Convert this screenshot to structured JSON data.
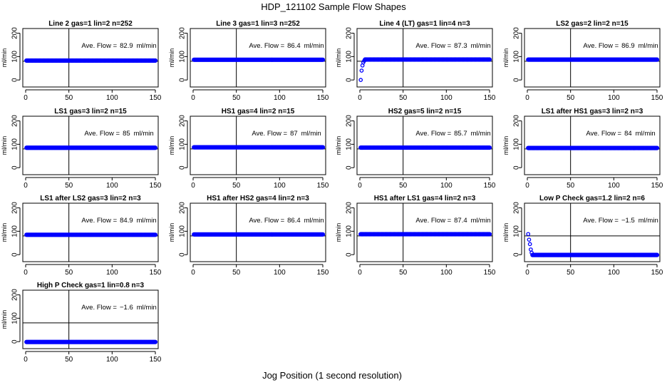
{
  "figure": {
    "title": "HDP_121102  Sample Flow Shapes",
    "xlabel": "Jog Position (1 second resolution)"
  },
  "chart_data": {
    "type": "scatter",
    "xlim": [
      0,
      150
    ],
    "ylim": [
      -30,
      220
    ],
    "xticks": [
      0,
      50,
      100,
      150
    ],
    "yticks": [
      0,
      100,
      200
    ],
    "ytick_labels": [
      "0",
      "100",
      "200"
    ],
    "ylabel": "ml/min",
    "vline_x": 50,
    "hline_y": 80,
    "point_color": "#0000ff",
    "ann_prefix": "Ave. Flow =",
    "ann_unit": "ml/min",
    "panels": [
      {
        "title": "Line 2 gas=1 lin=2 n=252",
        "ave_flow": "82.9",
        "level": 82.9,
        "ramp": []
      },
      {
        "title": "Line 3 gas=1 lin=3 n=252",
        "ave_flow": "86.4",
        "level": 86.4,
        "ramp": []
      },
      {
        "title": "Line 4 (LT) gas=1 lin=4 n=3",
        "ave_flow": "87.3",
        "level": 87.3,
        "ramp": [
          [
            1,
            0
          ],
          [
            2,
            40
          ],
          [
            3,
            62
          ],
          [
            4,
            75
          ],
          [
            5,
            82
          ]
        ]
      },
      {
        "title": "LS2 gas=2 lin=2 n=15",
        "ave_flow": "86.9",
        "level": 86.9,
        "ramp": []
      },
      {
        "title": "LS1 gas=3 lin=2 n=15",
        "ave_flow": "85",
        "level": 85,
        "ramp": []
      },
      {
        "title": "HS1 gas=4 lin=2 n=15",
        "ave_flow": "87",
        "level": 87,
        "ramp": []
      },
      {
        "title": "HS2 gas=5 lin=2 n=15",
        "ave_flow": "85.7",
        "level": 85.7,
        "ramp": []
      },
      {
        "title": "LS1 after HS1 gas=3 lin=2 n=3",
        "ave_flow": "84",
        "level": 84,
        "ramp": []
      },
      {
        "title": "LS1 after LS2 gas=3 lin=2 n=3",
        "ave_flow": "84.9",
        "level": 84.9,
        "ramp": []
      },
      {
        "title": "HS1 after HS2 gas=4 lin=2 n=3",
        "ave_flow": "86.4",
        "level": 86.4,
        "ramp": []
      },
      {
        "title": "HS1 after LS1 gas=4 lin=2 n=3",
        "ave_flow": "87.4",
        "level": 87.4,
        "ramp": []
      },
      {
        "title": "Low P Check gas=1.2 lin=2 n=6",
        "ave_flow": "−1.5",
        "level": -1.5,
        "ramp": [
          [
            1,
            88
          ],
          [
            2,
            64
          ],
          [
            3,
            45
          ],
          [
            4,
            22
          ],
          [
            5,
            8
          ]
        ]
      },
      {
        "title": "High P Check gas=1 lin=0.8 n=3",
        "ave_flow": "−1.6",
        "level": -1.6,
        "ramp": []
      }
    ]
  }
}
